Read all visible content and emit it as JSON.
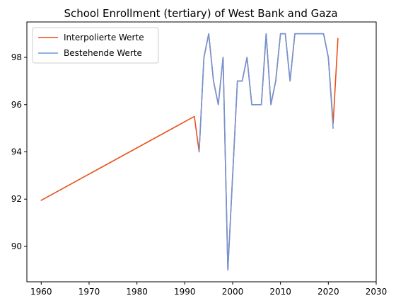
{
  "chart_data": {
    "type": "line",
    "title": "School Enrollment (tertiary) of West Bank and Gaza",
    "xlabel": "",
    "ylabel": "",
    "xlim": [
      1957,
      2030
    ],
    "ylim": [
      88.5,
      99.5
    ],
    "xticks": [
      1960,
      1970,
      1980,
      1990,
      2000,
      2010,
      2020,
      2030
    ],
    "yticks": [
      90,
      92,
      94,
      96,
      98
    ],
    "grid": false,
    "legend_position": "top-left",
    "series": [
      {
        "name": "Interpolierte Werte",
        "color": "#e8501a",
        "x": [
          1960,
          1992,
          1993,
          1994,
          1995,
          1996,
          1997,
          1998,
          1999,
          2000,
          2001,
          2002,
          2003,
          2004,
          2005,
          2006,
          2007,
          2008,
          2009,
          2010,
          2011,
          2012,
          2013,
          2014,
          2015,
          2016,
          2017,
          2018,
          2019,
          2020,
          2021,
          2022
        ],
        "y": [
          91.95,
          95.5,
          94,
          98,
          99,
          97,
          96,
          98,
          89,
          93,
          97,
          97,
          98,
          96,
          96,
          96,
          99,
          96,
          97,
          99,
          99,
          97,
          99,
          99,
          99,
          99,
          99,
          99,
          99,
          98,
          95.2,
          98.8
        ]
      },
      {
        "name": "Bestehende Werte",
        "color": "#6f95d8",
        "x": [
          1993,
          1994,
          1995,
          1996,
          1997,
          1998,
          1999,
          2000,
          2001,
          2002,
          2003,
          2004,
          2005,
          2006,
          2007,
          2008,
          2009,
          2010,
          2011,
          2012,
          2013,
          2014,
          2015,
          2016,
          2017,
          2018,
          2019,
          2020,
          2021
        ],
        "y": [
          94,
          98,
          99,
          97,
          96,
          98,
          89,
          93,
          97,
          97,
          98,
          96,
          96,
          96,
          99,
          96,
          97,
          99,
          99,
          97,
          99,
          99,
          99,
          99,
          99,
          99,
          99,
          98,
          95
        ]
      }
    ]
  }
}
